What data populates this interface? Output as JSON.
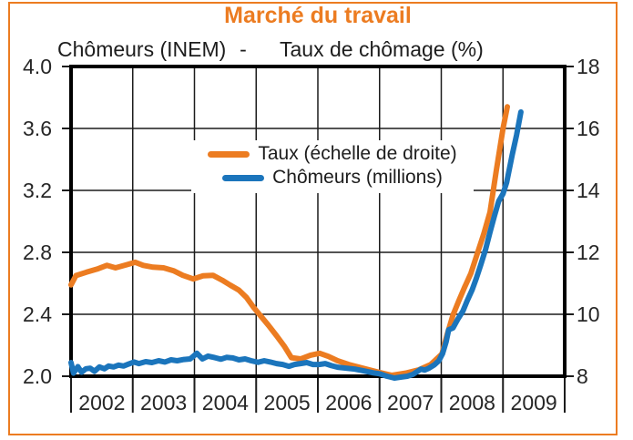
{
  "title": "Marché du travail",
  "subtitle": {
    "left": "Chômeurs (INEM)",
    "separator": "-",
    "right": "Taux de chômage (%)"
  },
  "legend": [
    {
      "label": "Taux (échelle de droite)",
      "color": "#EC7C21"
    },
    {
      "label": "Chômeurs (millions)",
      "color": "#1B75BC"
    }
  ],
  "colors": {
    "accent_orange": "#EC7C21",
    "series_blue": "#1B75BC",
    "axis_black": "#000000",
    "grid_dark": "#1c1c1c",
    "text_dark": "#262626"
  },
  "chart_data": {
    "type": "line",
    "title": "Marché du travail",
    "subtitle": "Chômeurs (INEM) - Taux de chômage (%)",
    "grid": true,
    "legend_position": "upper-center-inside",
    "x_axis": {
      "range": [
        2002,
        2010
      ],
      "year_labels": [
        "2002",
        "2003",
        "2004",
        "2005",
        "2006",
        "2007",
        "2008",
        "2009"
      ]
    },
    "left_axis": {
      "label": "Chômeurs (millions)",
      "range": [
        2.0,
        4.0
      ],
      "tick_labels_top_to_bottom": [
        "4.0",
        "3.6",
        "3.2",
        "2.8",
        "2.4",
        "2.0"
      ]
    },
    "right_axis": {
      "label": "Taux de chômage (%)",
      "range": [
        8,
        18
      ],
      "tick_labels_top_to_bottom": [
        "18",
        "16",
        "14",
        "12",
        "10",
        "8"
      ]
    },
    "series": [
      {
        "name": "Taux (échelle de droite)",
        "axis": "right",
        "color": "#EC7C21",
        "points": [
          [
            2002.0,
            10.95
          ],
          [
            2002.08,
            11.25
          ],
          [
            2002.25,
            11.36
          ],
          [
            2002.42,
            11.46
          ],
          [
            2002.58,
            11.58
          ],
          [
            2002.72,
            11.5
          ],
          [
            2002.9,
            11.6
          ],
          [
            2003.04,
            11.68
          ],
          [
            2003.17,
            11.58
          ],
          [
            2003.33,
            11.52
          ],
          [
            2003.5,
            11.5
          ],
          [
            2003.67,
            11.4
          ],
          [
            2003.81,
            11.26
          ],
          [
            2003.98,
            11.14
          ],
          [
            2004.14,
            11.24
          ],
          [
            2004.3,
            11.26
          ],
          [
            2004.45,
            11.1
          ],
          [
            2004.58,
            10.94
          ],
          [
            2004.72,
            10.78
          ],
          [
            2004.84,
            10.55
          ],
          [
            2004.96,
            10.22
          ],
          [
            2005.08,
            9.93
          ],
          [
            2005.2,
            9.64
          ],
          [
            2005.33,
            9.31
          ],
          [
            2005.46,
            8.96
          ],
          [
            2005.57,
            8.6
          ],
          [
            2005.72,
            8.56
          ],
          [
            2005.88,
            8.68
          ],
          [
            2006.03,
            8.74
          ],
          [
            2006.17,
            8.64
          ],
          [
            2006.32,
            8.5
          ],
          [
            2006.5,
            8.38
          ],
          [
            2006.75,
            8.25
          ],
          [
            2007.0,
            8.12
          ],
          [
            2007.2,
            8.03
          ],
          [
            2007.42,
            8.1
          ],
          [
            2007.64,
            8.21
          ],
          [
            2007.83,
            8.38
          ],
          [
            2008.01,
            8.72
          ],
          [
            2008.1,
            9.38
          ],
          [
            2008.19,
            9.98
          ],
          [
            2008.28,
            10.42
          ],
          [
            2008.38,
            10.88
          ],
          [
            2008.48,
            11.32
          ],
          [
            2008.59,
            12.0
          ],
          [
            2008.69,
            12.6
          ],
          [
            2008.79,
            13.3
          ],
          [
            2008.89,
            14.62
          ],
          [
            2009.0,
            16.0
          ],
          [
            2009.07,
            16.7
          ]
        ]
      },
      {
        "name": "Chômeurs (millions)",
        "axis": "left",
        "color": "#1B75BC",
        "points": [
          [
            2002.0,
            2.088
          ],
          [
            2002.04,
            2.02
          ],
          [
            2002.11,
            2.062
          ],
          [
            2002.17,
            2.026
          ],
          [
            2002.24,
            2.048
          ],
          [
            2002.31,
            2.052
          ],
          [
            2002.38,
            2.032
          ],
          [
            2002.46,
            2.06
          ],
          [
            2002.54,
            2.048
          ],
          [
            2002.61,
            2.066
          ],
          [
            2002.69,
            2.06
          ],
          [
            2002.77,
            2.072
          ],
          [
            2002.85,
            2.066
          ],
          [
            2002.93,
            2.078
          ],
          [
            2003.02,
            2.092
          ],
          [
            2003.1,
            2.082
          ],
          [
            2003.21,
            2.094
          ],
          [
            2003.31,
            2.088
          ],
          [
            2003.42,
            2.1
          ],
          [
            2003.52,
            2.092
          ],
          [
            2003.62,
            2.106
          ],
          [
            2003.72,
            2.1
          ],
          [
            2003.83,
            2.108
          ],
          [
            2003.93,
            2.112
          ],
          [
            2004.04,
            2.148
          ],
          [
            2004.13,
            2.112
          ],
          [
            2004.22,
            2.13
          ],
          [
            2004.33,
            2.12
          ],
          [
            2004.43,
            2.11
          ],
          [
            2004.52,
            2.122
          ],
          [
            2004.62,
            2.118
          ],
          [
            2004.72,
            2.106
          ],
          [
            2004.82,
            2.112
          ],
          [
            2004.92,
            2.1
          ],
          [
            2005.03,
            2.09
          ],
          [
            2005.13,
            2.1
          ],
          [
            2005.23,
            2.092
          ],
          [
            2005.33,
            2.082
          ],
          [
            2005.43,
            2.076
          ],
          [
            2005.53,
            2.064
          ],
          [
            2005.62,
            2.076
          ],
          [
            2005.72,
            2.082
          ],
          [
            2005.82,
            2.088
          ],
          [
            2005.92,
            2.076
          ],
          [
            2006.02,
            2.076
          ],
          [
            2006.12,
            2.082
          ],
          [
            2006.22,
            2.068
          ],
          [
            2006.32,
            2.058
          ],
          [
            2006.46,
            2.052
          ],
          [
            2006.6,
            2.046
          ],
          [
            2006.75,
            2.034
          ],
          [
            2006.9,
            2.022
          ],
          [
            2007.0,
            2.016
          ],
          [
            2007.12,
            2.0
          ],
          [
            2007.24,
            1.988
          ],
          [
            2007.34,
            1.994
          ],
          [
            2007.45,
            2.0
          ],
          [
            2007.54,
            2.012
          ],
          [
            2007.61,
            2.03
          ],
          [
            2007.67,
            2.046
          ],
          [
            2007.73,
            2.04
          ],
          [
            2007.8,
            2.052
          ],
          [
            2007.89,
            2.074
          ],
          [
            2007.96,
            2.1
          ],
          [
            2008.02,
            2.146
          ],
          [
            2008.08,
            2.224
          ],
          [
            2008.12,
            2.3
          ],
          [
            2008.19,
            2.312
          ],
          [
            2008.27,
            2.37
          ],
          [
            2008.35,
            2.42
          ],
          [
            2008.42,
            2.488
          ],
          [
            2008.5,
            2.558
          ],
          [
            2008.57,
            2.634
          ],
          [
            2008.64,
            2.72
          ],
          [
            2008.72,
            2.822
          ],
          [
            2008.79,
            2.93
          ],
          [
            2008.86,
            3.034
          ],
          [
            2008.93,
            3.13
          ],
          [
            2009.0,
            3.178
          ],
          [
            2009.06,
            3.252
          ],
          [
            2009.15,
            3.43
          ],
          [
            2009.22,
            3.558
          ],
          [
            2009.29,
            3.706
          ]
        ]
      }
    ]
  }
}
